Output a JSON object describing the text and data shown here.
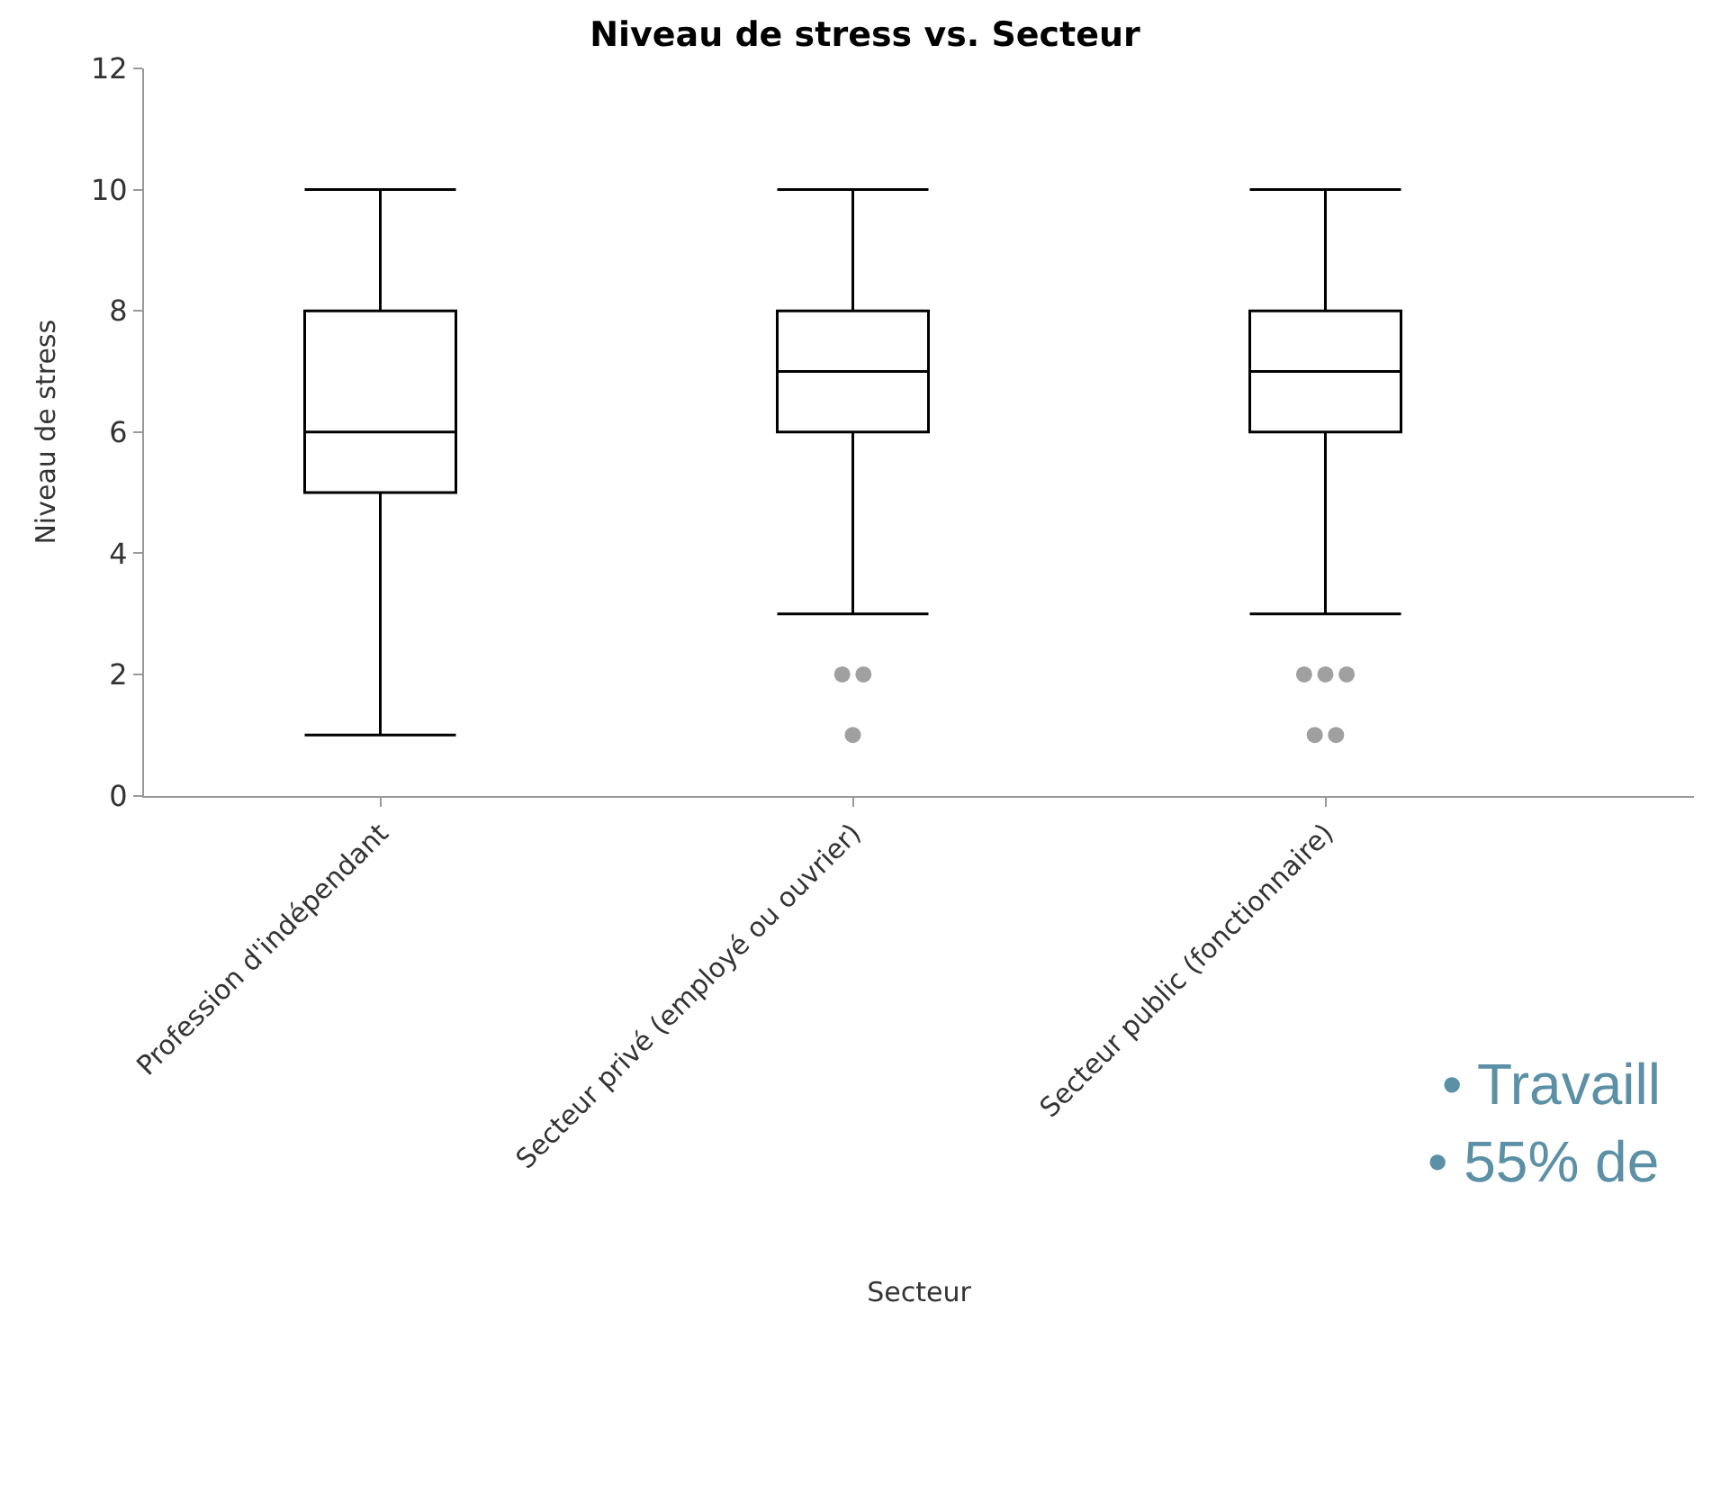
{
  "chart_data": {
    "type": "box",
    "title": "Niveau de stress vs. Secteur",
    "xlabel": "Secteur",
    "ylabel": "Niveau de stress",
    "categories": [
      "Profession d'indépendant",
      "Secteur privé (employé ou ouvrier)",
      "Secteur public (fonctionnaire)"
    ],
    "boxes": [
      {
        "low": 1,
        "q1": 5,
        "median": 6,
        "q3": 8,
        "high": 10
      },
      {
        "low": 3,
        "q1": 6,
        "median": 7,
        "q3": 8,
        "high": 10,
        "outliers": [
          2,
          2,
          1
        ]
      },
      {
        "low": 3,
        "q1": 6,
        "median": 7,
        "q3": 8,
        "high": 10,
        "outliers": [
          2,
          2,
          2,
          1,
          1
        ]
      }
    ],
    "ylim": [
      0,
      12
    ],
    "yticks": [
      0,
      2,
      4,
      6,
      8,
      10,
      12
    ],
    "annotations": [
      "• Travaill",
      "• 55% de"
    ]
  }
}
